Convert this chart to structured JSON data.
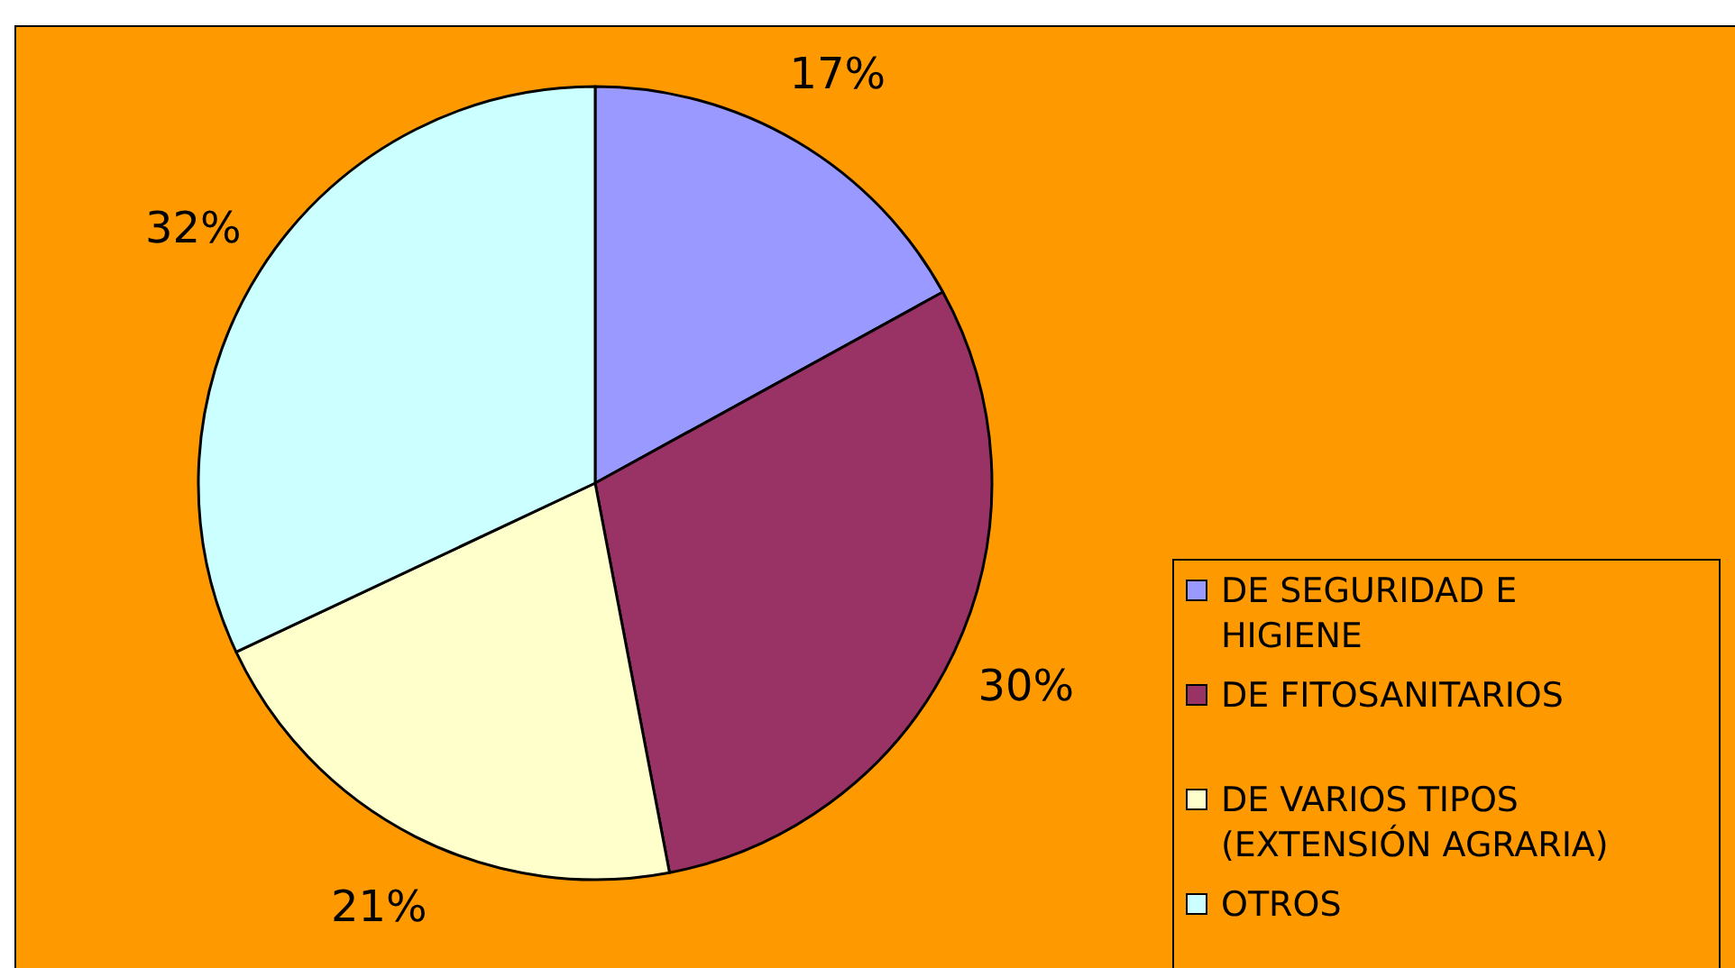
{
  "chart_data": {
    "type": "pie",
    "categories": [
      "DE SEGURIDAD E HIGIENE",
      "DE FITOSANITARIOS",
      "DE VARIOS TIPOS (EXTENSIÓN AGRARIA)",
      "OTROS"
    ],
    "values": [
      17,
      30,
      21,
      32
    ],
    "colors": [
      "#9999ff",
      "#993366",
      "#ffffcc",
      "#ccffff"
    ],
    "value_labels": [
      "17%",
      "30%",
      "21%",
      "32%"
    ],
    "legend": "bottom right"
  }
}
